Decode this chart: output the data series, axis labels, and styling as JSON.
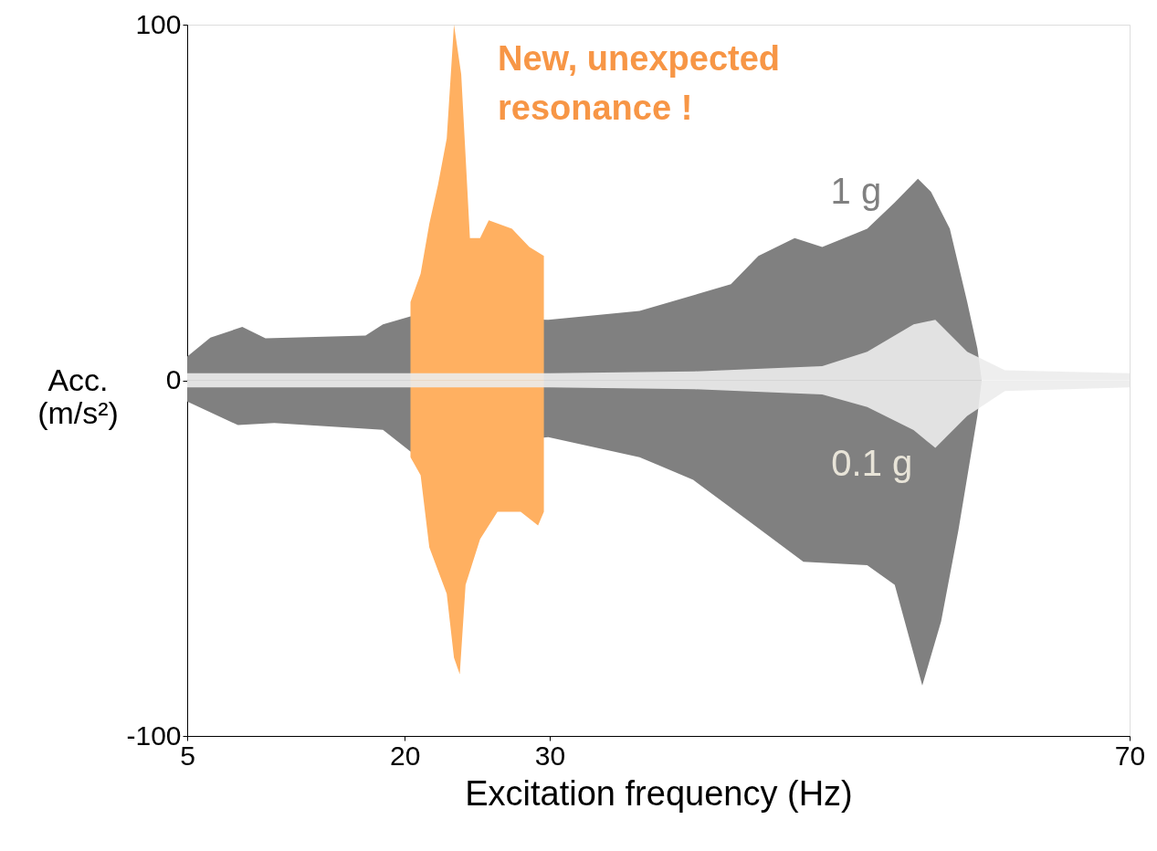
{
  "chart_data": {
    "type": "area",
    "xlabel": "Excitation frequency  (Hz)",
    "ylabel": "Acc.\n(m/s²)",
    "xlim": [
      5,
      70
    ],
    "ylim": [
      -100,
      100
    ],
    "xticks": [
      5,
      20,
      30,
      70
    ],
    "yticks": [
      100,
      0,
      -100
    ],
    "grid": false,
    "annotations": [
      "New, unexpected\nresonance !"
    ],
    "series": [
      {
        "name": "1 g",
        "color": "#808080",
        "x": [
          5,
          6.6,
          8.8,
          10.4,
          17.3,
          18.5,
          20.4,
          29.9,
          36.2,
          42.5,
          44.4,
          46.9,
          48.8,
          51.9,
          53.8,
          55.4,
          56.3,
          57.6,
          58.8,
          59.5,
          59.8
        ],
        "values": [
          6.7,
          12,
          15,
          11.8,
          12.6,
          15.7,
          18,
          17,
          19.5,
          27,
          35,
          40,
          37.5,
          42.6,
          50,
          56.7,
          53,
          42.6,
          22,
          9,
          0
        ]
      },
      {
        "color": "#808080",
        "x": [
          5,
          8.5,
          11,
          18.5,
          20.4,
          29.9,
          36.2,
          39.9,
          43.7,
          47.5,
          51.9,
          53.8,
          55.7,
          57.0,
          58.2,
          59.5,
          59.8
        ],
        "values": [
          -6,
          -12.6,
          -12,
          -13.9,
          -20,
          -16,
          -21.6,
          -28,
          -39.5,
          -51,
          -52,
          -57.5,
          -85.8,
          -67.8,
          -42,
          -10,
          0
        ]
      },
      {
        "color": "#ffb061",
        "x": [
          20.4,
          21.1,
          21.7,
          22.3,
          22.9,
          23.4,
          23.9,
          24.5,
          25.2,
          25.8,
          27.4,
          28.6,
          29.6
        ],
        "values": [
          22,
          30,
          44,
          55,
          68,
          100,
          86,
          40,
          40,
          45,
          42.6,
          37.5,
          35
        ]
      },
      {
        "color": "#ffb061",
        "x": [
          20.4,
          21.1,
          21.7,
          22.9,
          23.4,
          23.8,
          24.2,
          25.2,
          26.4,
          28.0,
          29.2,
          29.6
        ],
        "values": [
          -21.6,
          -26.7,
          -47,
          -60,
          -78,
          -82.7,
          -57.5,
          -44.7,
          -37,
          -37,
          -40.8,
          -37
        ]
      },
      {
        "color": "#ececec",
        "x": [
          5,
          30,
          40,
          48.8,
          51.9,
          55.1,
          56.6,
          58.8,
          61.4,
          70
        ],
        "values": [
          2,
          2,
          2.5,
          4,
          8,
          15.7,
          17,
          8,
          2.8,
          2
        ]
      },
      {
        "name": "0.1 g",
        "color": "#ececec",
        "x": [
          5,
          30,
          40,
          48.8,
          51.9,
          55.1,
          56.6,
          58.8,
          61.4,
          70
        ],
        "values": [
          -2,
          -2,
          -2.5,
          -4,
          -7.5,
          -14,
          -19,
          -10,
          -3,
          -2
        ]
      }
    ]
  }
}
